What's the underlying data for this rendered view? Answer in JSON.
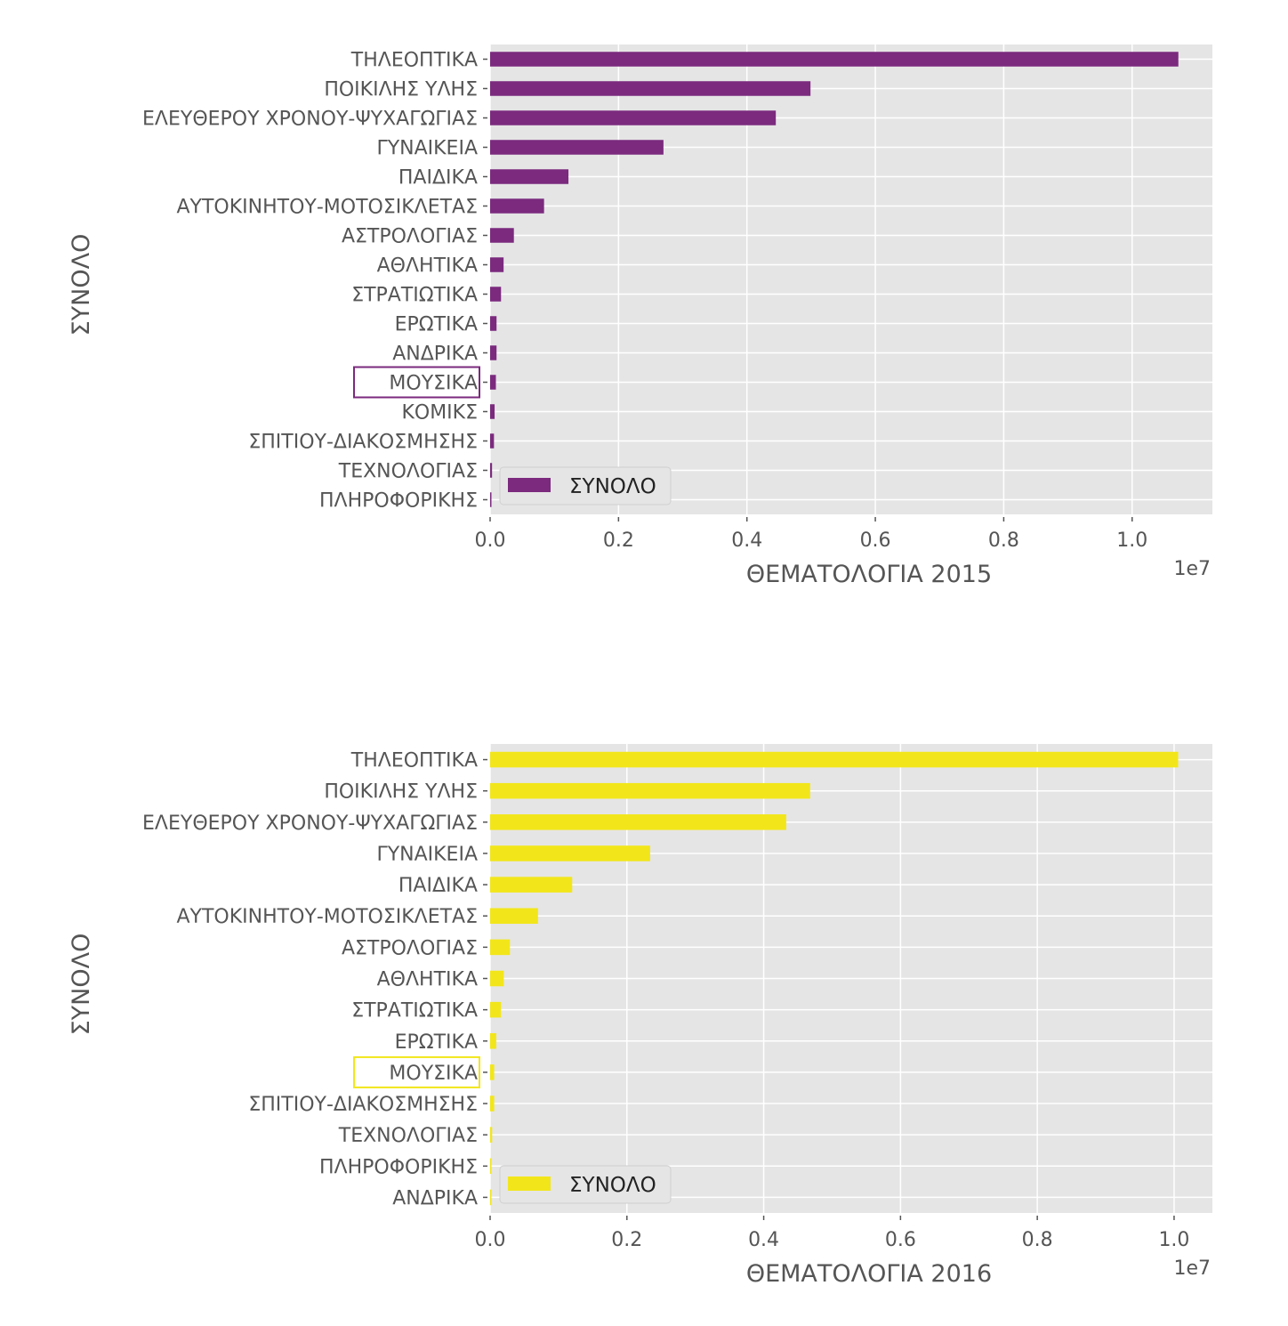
{
  "chart_data": [
    {
      "type": "bar",
      "orientation": "horizontal",
      "title": "",
      "xlabel": "ΘΕΜΑΤΟΛΟΓΙΑ 2015",
      "ylabel": "ΣΥΝΟΛΟ",
      "x_scale_label": "1e7",
      "xlim": [
        0,
        1.125
      ],
      "xticks": [
        "0.0",
        "0.2",
        "0.4",
        "0.6",
        "0.8",
        "1.0"
      ],
      "xtick_values": [
        0,
        0.2,
        0.4,
        0.6,
        0.8,
        1.0
      ],
      "grid": true,
      "legend": {
        "position": "bottom-left",
        "entries": [
          "ΣΥΝΟΛΟ"
        ]
      },
      "color": "#7b2a7e",
      "highlighted_category": "ΜΟΥΣΙΚΑ",
      "categories": [
        "ΤΗΛΕΟΠΤΙΚΑ",
        "ΠΟΙΚΙΛΗΣ ΥΛΗΣ",
        "ΕΛΕΥΘΕΡΟΥ ΧΡΟΝΟΥ-ΨΥΧΑΓΩΓΙΑΣ",
        "ΓΥΝΑΙΚΕΙΑ",
        "ΠΑΙΔΙΚΑ",
        "ΑΥΤΟΚΙΝΗΤΟΥ-ΜΟΤΟΣΙΚΛΕΤΑΣ",
        "ΑΣΤΡΟΛΟΓΙΑΣ",
        "ΑΘΛΗΤΙΚΑ",
        "ΣΤΡΑΤΙΩΤΙΚΑ",
        "ΕΡΩΤΙΚΑ",
        "ΑΝΔΡΙΚΑ",
        "ΜΟΥΣΙΚΑ",
        "ΚΟΜΙΚΣ",
        "ΣΠΙΤΙΟΥ-ΔΙΑΚΟΣΜΗΣΗΣ",
        "ΤΕΧΝΟΛΟΓΙΑΣ",
        "ΠΛΗΡΟΦΟΡΙΚΗΣ"
      ],
      "series": [
        {
          "name": "ΣΥΝΟΛΟ",
          "values": [
            1.072,
            0.499,
            0.445,
            0.27,
            0.122,
            0.084,
            0.037,
            0.021,
            0.017,
            0.01,
            0.01,
            0.009,
            0.007,
            0.006,
            0.003,
            0.002
          ]
        }
      ]
    },
    {
      "type": "bar",
      "orientation": "horizontal",
      "title": "",
      "xlabel": "ΘΕΜΑΤΟΛΟΓΙΑ 2016",
      "ylabel": "ΣΥΝΟΛΟ",
      "x_scale_label": "1e7",
      "xlim": [
        0,
        1.056
      ],
      "xticks": [
        "0.0",
        "0.2",
        "0.4",
        "0.6",
        "0.8",
        "1.0"
      ],
      "xtick_values": [
        0,
        0.2,
        0.4,
        0.6,
        0.8,
        1.0
      ],
      "grid": true,
      "legend": {
        "position": "bottom-left",
        "entries": [
          "ΣΥΝΟΛΟ"
        ]
      },
      "color": "#f2e61a",
      "highlighted_category": "ΜΟΥΣΙΚΑ",
      "categories": [
        "ΤΗΛΕΟΠΤΙΚΑ",
        "ΠΟΙΚΙΛΗΣ ΥΛΗΣ",
        "ΕΛΕΥΘΕΡΟΥ ΧΡΟΝΟΥ-ΨΥΧΑΓΩΓΙΑΣ",
        "ΓΥΝΑΙΚΕΙΑ",
        "ΠΑΙΔΙΚΑ",
        "ΑΥΤΟΚΙΝΗΤΟΥ-ΜΟΤΟΣΙΚΛΕΤΑΣ",
        "ΑΣΤΡΟΛΟΓΙΑΣ",
        "ΑΘΛΗΤΙΚΑ",
        "ΣΤΡΑΤΙΩΤΙΚΑ",
        "ΕΡΩΤΙΚΑ",
        "ΜΟΥΣΙΚΑ",
        "ΣΠΙΤΙΟΥ-ΔΙΑΚΟΣΜΗΣΗΣ",
        "ΤΕΧΝΟΛΟΓΙΑΣ",
        "ΠΛΗΡΟΦΟΡΙΚΗΣ",
        "ΑΝΔΡΙΚΑ"
      ],
      "series": [
        {
          "name": "ΣΥΝΟΛΟ",
          "values": [
            1.006,
            0.468,
            0.433,
            0.234,
            0.12,
            0.07,
            0.029,
            0.02,
            0.016,
            0.009,
            0.006,
            0.006,
            0.003,
            0.002,
            0.001
          ]
        }
      ]
    }
  ]
}
